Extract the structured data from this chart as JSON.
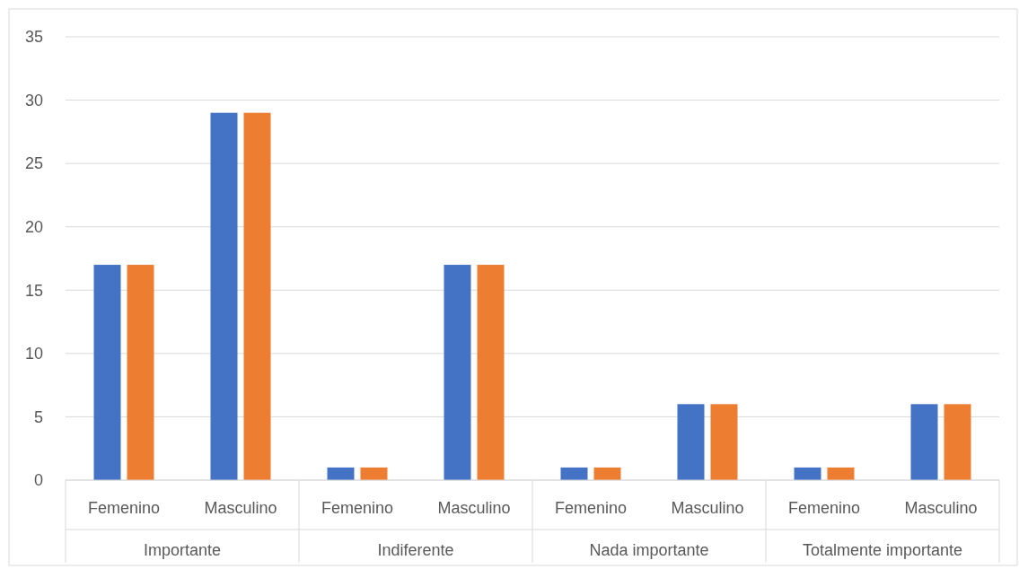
{
  "chart_data": {
    "type": "bar",
    "categories": [
      "Femenino",
      "Masculino",
      "Femenino",
      "Masculino",
      "Femenino",
      "Masculino",
      "Femenino",
      "Masculino"
    ],
    "series": [
      {
        "color": "#4472c4",
        "values": [
          17,
          29,
          1,
          17,
          1,
          6,
          1,
          6
        ]
      },
      {
        "color": "#ed7d31",
        "values": [
          17,
          29,
          1,
          17,
          1,
          6,
          1,
          6
        ]
      }
    ],
    "annotations": [
      "Importante",
      "Indiferente",
      "Nada importante",
      "Totalmente importante"
    ],
    "ylim": [
      0,
      35
    ],
    "yticks": [
      0,
      5,
      10,
      15,
      20,
      25,
      30,
      35
    ],
    "grid": "y"
  }
}
